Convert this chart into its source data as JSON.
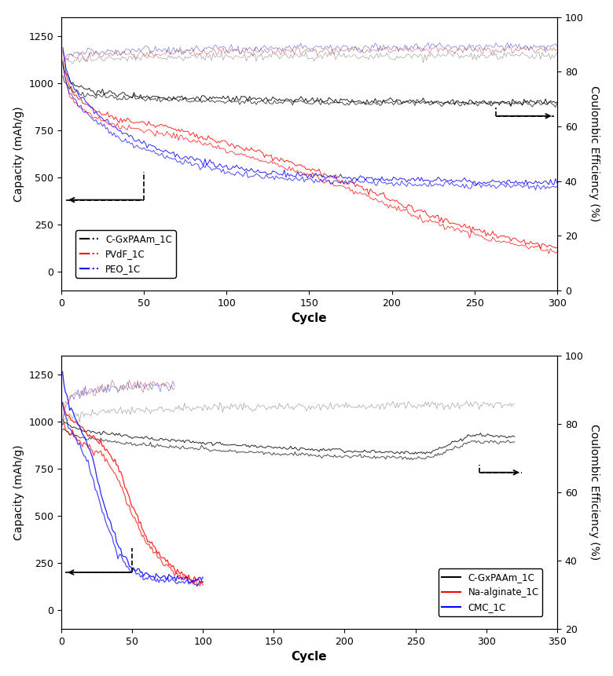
{
  "top": {
    "xlim": [
      0,
      300
    ],
    "ylim_left": [
      -100,
      1350
    ],
    "ylim_right": [
      0,
      100
    ],
    "yticks_left": [
      0,
      250,
      500,
      750,
      1000,
      1250
    ],
    "yticks_right": [
      0,
      20,
      40,
      60,
      80,
      100
    ],
    "xticks": [
      0,
      50,
      100,
      150,
      200,
      250,
      300
    ],
    "xlabel": "Cycle",
    "ylabel_left": "Capacity (mAh/g)",
    "ylabel_right": "Coulombic Efficiency (%)",
    "legend_labels": [
      "C-GxPAAm_1C",
      "PVdF_1C",
      "PEO_1C"
    ],
    "legend_colors": [
      "black",
      "red",
      "blue"
    ],
    "cap_arrow": {
      "x_start": 50,
      "x_end": 3,
      "y": 380,
      "y_top": 530
    },
    "ce_arrow": {
      "x_start": 263,
      "x_end": 298,
      "y": 825,
      "y_top": 870
    },
    "cgx_discharge_x": [
      1,
      2,
      3,
      5,
      7,
      10,
      15,
      20,
      30,
      40,
      50,
      60,
      70,
      80,
      90,
      100,
      120,
      140,
      160,
      180,
      200,
      220,
      240,
      260,
      280,
      300
    ],
    "cgx_discharge_y": [
      1100,
      1060,
      1040,
      1010,
      995,
      980,
      965,
      955,
      945,
      938,
      930,
      926,
      923,
      920,
      918,
      916,
      913,
      910,
      908,
      906,
      904,
      902,
      900,
      899,
      898,
      897
    ],
    "cgx_charge_x": [
      1,
      2,
      3,
      5,
      7,
      10,
      15,
      20,
      30,
      40,
      50,
      60,
      70,
      80,
      90,
      100,
      120,
      140,
      160,
      180,
      200,
      220,
      240,
      260,
      280,
      300
    ],
    "cgx_charge_y": [
      1050,
      1010,
      995,
      975,
      960,
      950,
      940,
      930,
      923,
      918,
      913,
      910,
      907,
      905,
      903,
      901,
      899,
      897,
      895,
      894,
      893,
      892,
      891,
      890,
      889,
      888
    ],
    "pvdf_discharge_x": [
      1,
      3,
      5,
      10,
      20,
      30,
      40,
      50,
      60,
      70,
      80,
      100,
      120,
      140,
      160,
      180,
      200,
      220,
      240,
      260,
      280,
      300
    ],
    "pvdf_discharge_y": [
      1180,
      1050,
      980,
      920,
      860,
      820,
      800,
      790,
      775,
      755,
      730,
      680,
      630,
      575,
      515,
      450,
      380,
      310,
      250,
      200,
      160,
      130
    ],
    "pvdf_charge_x": [
      1,
      3,
      5,
      10,
      20,
      30,
      40,
      50,
      60,
      70,
      80,
      100,
      120,
      140,
      160,
      180,
      200,
      220,
      240,
      260,
      280,
      300
    ],
    "pvdf_charge_y": [
      1120,
      1000,
      940,
      875,
      820,
      780,
      760,
      750,
      735,
      715,
      695,
      645,
      595,
      540,
      480,
      415,
      345,
      278,
      220,
      170,
      135,
      105
    ],
    "peo_discharge_x": [
      1,
      2,
      3,
      5,
      10,
      15,
      20,
      30,
      40,
      50,
      60,
      70,
      80,
      100,
      120,
      140,
      160,
      180,
      200,
      220,
      240,
      260,
      280,
      300
    ],
    "peo_discharge_y": [
      1200,
      1130,
      1080,
      1020,
      950,
      900,
      850,
      780,
      720,
      680,
      650,
      620,
      595,
      555,
      530,
      515,
      505,
      497,
      490,
      485,
      480,
      477,
      475,
      472
    ],
    "peo_charge_x": [
      1,
      2,
      3,
      5,
      10,
      15,
      20,
      30,
      40,
      50,
      60,
      70,
      80,
      100,
      120,
      140,
      160,
      180,
      200,
      220,
      240,
      260,
      280,
      300
    ],
    "peo_charge_y": [
      1100,
      1050,
      1000,
      950,
      890,
      845,
      800,
      740,
      685,
      648,
      618,
      590,
      568,
      528,
      504,
      490,
      480,
      473,
      467,
      462,
      458,
      455,
      453,
      450
    ],
    "cgx_ce_x": [
      1,
      2,
      3,
      5,
      10,
      15,
      20,
      30,
      40,
      50,
      60,
      80,
      100,
      120,
      150,
      180,
      200,
      250,
      300
    ],
    "cgx_ce_y": [
      82,
      83,
      83.5,
      84,
      84.5,
      84.8,
      85,
      85,
      85.2,
      85.3,
      85.3,
      85.4,
      85.5,
      85.5,
      85.6,
      85.7,
      85.7,
      85.8,
      85.8
    ],
    "pvdf_ce_x": [
      1,
      2,
      3,
      5,
      10,
      15,
      20,
      30,
      40,
      50,
      60,
      80,
      100,
      120,
      150,
      180,
      200,
      250,
      300
    ],
    "pvdf_ce_y": [
      83,
      84,
      84.5,
      85,
      85.5,
      86,
      86.2,
      86.5,
      86.7,
      86.8,
      87,
      87.2,
      87.4,
      87.5,
      87.7,
      87.8,
      88,
      88.1,
      88.2
    ],
    "peo_ce_x": [
      1,
      2,
      3,
      5,
      10,
      15,
      20,
      30,
      40,
      50,
      60,
      80,
      100,
      120,
      150,
      180,
      200,
      250,
      300
    ],
    "peo_ce_y": [
      84,
      85,
      85.5,
      86,
      86.5,
      87,
      87.2,
      87.5,
      87.7,
      87.9,
      88,
      88.2,
      88.4,
      88.5,
      88.7,
      88.8,
      89,
      89.1,
      89.2
    ]
  },
  "bottom": {
    "xlim": [
      0,
      350
    ],
    "ylim_left": [
      -100,
      1350
    ],
    "ylim_right": [
      20,
      100
    ],
    "yticks_left": [
      0,
      250,
      500,
      750,
      1000,
      1250
    ],
    "yticks_right": [
      20,
      40,
      60,
      80,
      100
    ],
    "xticks": [
      0,
      50,
      100,
      150,
      200,
      250,
      300,
      350
    ],
    "xlabel": "Cycle",
    "ylabel_left": "Capacity (mAh/g)",
    "ylabel_right": "Coulombic Efficiency (%)",
    "legend_labels": [
      "C-GxPAAm_1C",
      "Na-alginate_1C",
      "CMC_1C"
    ],
    "legend_colors": [
      "black",
      "red",
      "blue"
    ],
    "cap_arrow": {
      "x_start": 50,
      "x_end": 3,
      "y": 200,
      "y_top": 330
    },
    "ce_arrow": {
      "x_start": 295,
      "x_end": 325,
      "y": 730,
      "y_top": 770
    },
    "cgx_discharge_x": [
      1,
      2,
      3,
      5,
      7,
      10,
      15,
      20,
      30,
      40,
      50,
      60,
      70,
      80,
      100,
      120,
      150,
      180,
      200,
      230,
      260,
      290,
      320
    ],
    "cgx_discharge_y": [
      1020,
      1010,
      1000,
      985,
      975,
      965,
      955,
      948,
      938,
      930,
      920,
      912,
      906,
      900,
      888,
      877,
      862,
      852,
      846,
      838,
      835,
      930,
      920
    ],
    "cgx_charge_x": [
      1,
      2,
      3,
      5,
      7,
      10,
      15,
      20,
      30,
      40,
      50,
      60,
      70,
      80,
      100,
      120,
      150,
      180,
      200,
      230,
      260,
      290,
      320
    ],
    "cgx_charge_y": [
      970,
      963,
      955,
      942,
      932,
      924,
      914,
      908,
      900,
      892,
      882,
      876,
      870,
      865,
      854,
      844,
      830,
      821,
      816,
      809,
      806,
      897,
      888
    ],
    "naalg_discharge_x": [
      1,
      2,
      3,
      5,
      10,
      15,
      20,
      30,
      40,
      50,
      60,
      70,
      80,
      90,
      100
    ],
    "naalg_discharge_y": [
      1100,
      1070,
      1050,
      1020,
      990,
      960,
      930,
      880,
      760,
      560,
      390,
      290,
      215,
      170,
      150
    ],
    "naalg_charge_x": [
      1,
      2,
      3,
      5,
      10,
      15,
      20,
      30,
      40,
      50,
      60,
      70,
      80,
      90,
      100
    ],
    "naalg_charge_y": [
      1000,
      980,
      960,
      940,
      915,
      888,
      860,
      815,
      700,
      510,
      355,
      265,
      196,
      155,
      138
    ],
    "cmc_discharge_x": [
      1,
      2,
      3,
      5,
      10,
      15,
      20,
      25,
      30,
      40,
      50,
      60,
      70,
      80,
      90,
      100
    ],
    "cmc_discharge_y": [
      1250,
      1200,
      1160,
      1100,
      1020,
      940,
      850,
      720,
      570,
      340,
      225,
      188,
      175,
      168,
      163,
      160
    ],
    "cmc_charge_x": [
      1,
      2,
      3,
      5,
      10,
      15,
      20,
      25,
      30,
      40,
      50,
      60,
      70,
      80,
      90,
      100
    ],
    "cmc_charge_y": [
      1100,
      1060,
      1030,
      980,
      910,
      840,
      755,
      635,
      505,
      302,
      200,
      168,
      158,
      152,
      147,
      145
    ],
    "cgx_ce_x": [
      1,
      2,
      3,
      5,
      10,
      20,
      30,
      50,
      80,
      100,
      150,
      200,
      250,
      300,
      320
    ],
    "cgx_ce_y": [
      80,
      81,
      81.5,
      82,
      82.5,
      83,
      83.5,
      84,
      84.5,
      84.7,
      85,
      85.2,
      85.4,
      85.6,
      85.7
    ],
    "naalg_ce_x": [
      1,
      2,
      3,
      5,
      8,
      10,
      15,
      20,
      30,
      40,
      50,
      60,
      70,
      80
    ],
    "naalg_ce_y": [
      81,
      84,
      85.5,
      87,
      88.5,
      89,
      89.5,
      90,
      90.5,
      91,
      91.2,
      91.3,
      91.4,
      91.5
    ],
    "cmc_ce_x": [
      1,
      2,
      3,
      5,
      8,
      10,
      15,
      20,
      30,
      40,
      50,
      60,
      70,
      80
    ],
    "cmc_ce_y": [
      79,
      83,
      85,
      87,
      88,
      88.5,
      89,
      89.5,
      90,
      90.5,
      91,
      91.2,
      91.3,
      91.4
    ]
  }
}
